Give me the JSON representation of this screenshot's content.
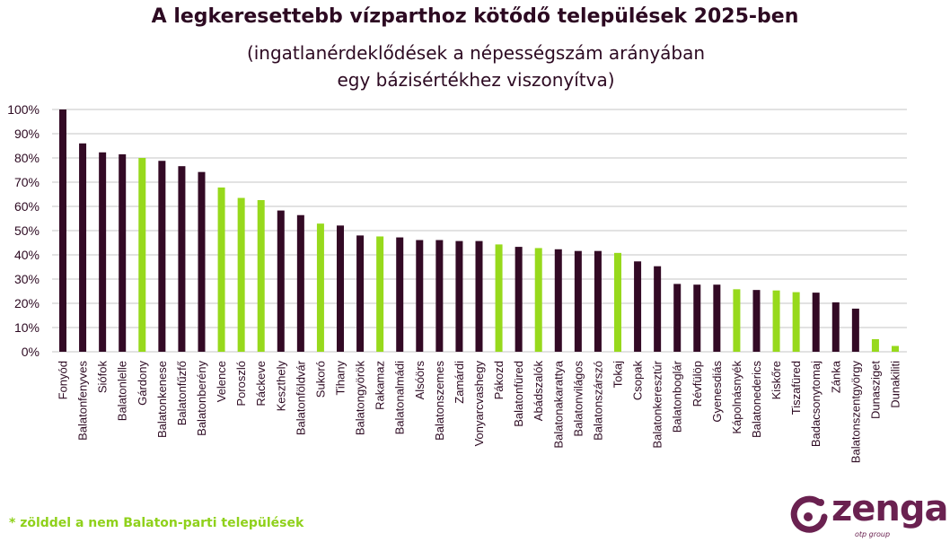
{
  "chart_data": {
    "type": "bar",
    "title": "A legkeresettebb vízparthoz kötődő települések 2025-ben",
    "subtitle": "(ingatlanérdeklődések a népességszám arányában egy bázisértékhez viszonyítva)",
    "xlabel": "",
    "ylabel": "",
    "ylim": [
      0,
      100
    ],
    "yticks": [
      "0%",
      "10%",
      "20%",
      "30%",
      "40%",
      "50%",
      "60%",
      "70%",
      "80%",
      "90%",
      "100%"
    ],
    "grid": true,
    "colors": {
      "balaton": "#330a25",
      "non_balaton": "#97d91c"
    },
    "categories": [
      "Fonyód",
      "Balatonfenyves",
      "Siófok",
      "Balatonlelle",
      "Gárdony",
      "Balatonkenese",
      "Balatonfűzfő",
      "Balatonberény",
      "Velence",
      "Poroszló",
      "Ráckeve",
      "Keszthely",
      "Balatonföldvár",
      "Sukoró",
      "Tihany",
      "Balatongyörök",
      "Rakamaz",
      "Balatonalmádi",
      "Alsóörs",
      "Balatonszemes",
      "Zamárdi",
      "Vonyarcvashegy",
      "Pákozd",
      "Balatonfüred",
      "Abádszalók",
      "Balatonakarattya",
      "Balatonvilágos",
      "Balatonszárszó",
      "Tokaj",
      "Csopak",
      "Balatonkeresztúr",
      "Balatonboglár",
      "Révfülöp",
      "Gyenesdiás",
      "Kápolnásnyék",
      "Balatonederics",
      "Kiskőre",
      "Tiszafüred",
      "Badacsonytomaj",
      "Zánka",
      "Balatonszentgyörgy",
      "Dunasziget",
      "Dunakiliti"
    ],
    "values": [
      100,
      86,
      82.3,
      81.5,
      80,
      78.8,
      76.6,
      74.2,
      67.8,
      63.5,
      62.6,
      58.3,
      56.4,
      52.9,
      52.1,
      48,
      47.6,
      47.2,
      46.1,
      46.1,
      45.7,
      45.7,
      44.3,
      43.3,
      42.8,
      42.3,
      41.6,
      41.6,
      40.8,
      37.3,
      35.3,
      28,
      27.7,
      27.7,
      25.8,
      25.5,
      25.3,
      24.6,
      24.4,
      20.4,
      17.8,
      5.2,
      2.4
    ],
    "non_balaton": [
      false,
      false,
      false,
      false,
      true,
      false,
      false,
      false,
      true,
      true,
      true,
      false,
      false,
      true,
      false,
      false,
      true,
      false,
      false,
      false,
      false,
      false,
      true,
      false,
      true,
      false,
      false,
      false,
      true,
      false,
      false,
      false,
      false,
      false,
      true,
      false,
      true,
      true,
      false,
      false,
      false,
      true,
      true
    ]
  },
  "footnote": "* zölddel a nem Balaton-parti települések",
  "logo": {
    "name": "zenga",
    "tagline": "otp group"
  }
}
